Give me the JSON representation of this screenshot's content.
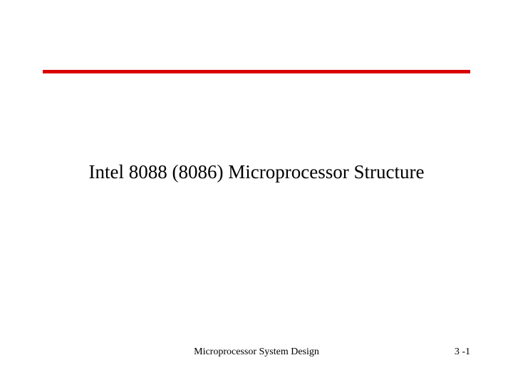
{
  "styling": {
    "rule_color": "#d90000",
    "text_color": "#000000",
    "background_color": "#ffffff",
    "title_fontsize": 27,
    "footer_fontsize": 14
  },
  "title": "Intel 8088 (8086) Microprocessor Structure",
  "footer": {
    "center": "Microprocessor System Design",
    "right": "3 -1"
  }
}
